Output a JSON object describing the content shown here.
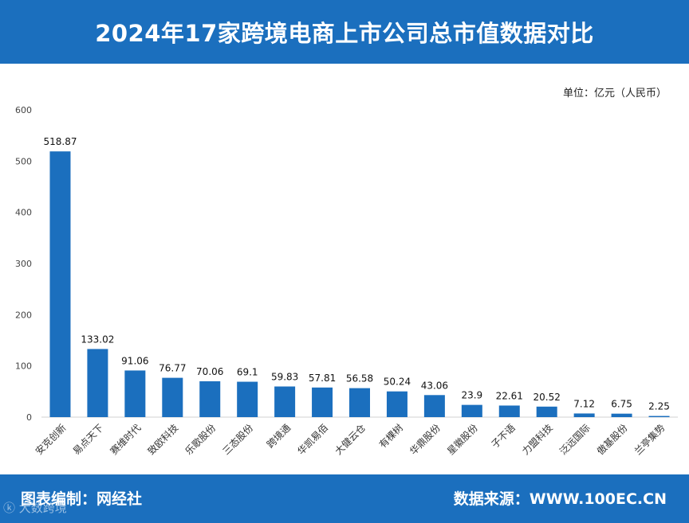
{
  "header": {
    "title": "2024年17家跨境电商上市公司总市值数据对比"
  },
  "unit_label": "单位：亿元（人民币）",
  "footer": {
    "left": "图表编制：网经社",
    "right": "数据来源：WWW.100EC.CN",
    "tag": "ⓚ 大数跨境"
  },
  "colors": {
    "bar": "#1b6fbe",
    "header": "#1b6fbe"
  },
  "chart_data": {
    "type": "bar",
    "title": "2024年17家跨境电商上市公司总市值数据对比",
    "categories": [
      "安克创新",
      "易点天下",
      "赛维时代",
      "致欧科技",
      "乐歌股份",
      "三态股份",
      "跨境通",
      "华凯易佰",
      "大健云仓",
      "有棵树",
      "华鼎股份",
      "星徽股份",
      "子不语",
      "力盟科技",
      "泛远国际",
      "傲基股份",
      "兰亭集势"
    ],
    "values": [
      518.87,
      133.02,
      91.06,
      76.77,
      70.06,
      69.1,
      59.83,
      57.81,
      56.58,
      50.24,
      43.06,
      23.9,
      22.61,
      20.52,
      7.12,
      6.75,
      2.25
    ],
    "value_labels": [
      "518.87",
      "133.02",
      "91.06",
      "76.77",
      "70.06",
      "69.1",
      "59.83",
      "57.81",
      "56.58",
      "50.24",
      "43.06",
      "23.9",
      "22.61",
      "20.52",
      "7.12",
      "6.75",
      "2.25"
    ],
    "ylim": [
      0,
      600
    ],
    "yticks": [
      0,
      100,
      200,
      300,
      400,
      500,
      600
    ],
    "grid": false,
    "xlabel": "",
    "ylabel": ""
  }
}
